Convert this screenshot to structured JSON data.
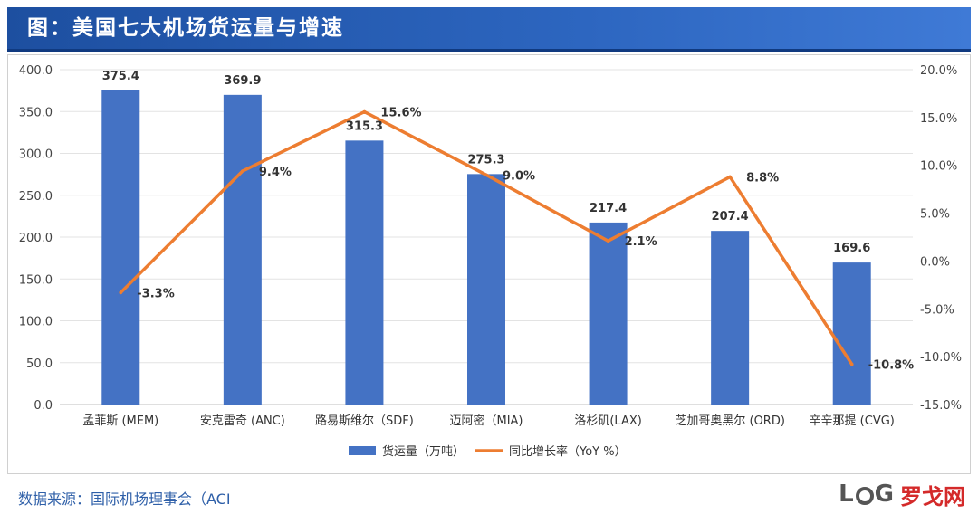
{
  "title": "图：美国七大机场货运量与增速",
  "source": "数据来源：国际机场理事会（ACI",
  "brand": {
    "log_prefix": "L",
    "log_suffix": "G",
    "cn": "罗戈网"
  },
  "colors": {
    "bar": "#4472c4",
    "line": "#ed7d31",
    "title_bg": "#2558b0"
  },
  "chart_data": {
    "type": "bar",
    "categories": [
      "孟菲斯 (MEM)",
      "安克雷奇 (ANC)",
      "路易斯维尔（SDF)",
      "迈阿密（MIA)",
      "洛杉矶(LAX)",
      "芝加哥奥黑尔 (ORD)",
      "辛辛那提 (CVG)"
    ],
    "series": [
      {
        "name": "货运量（万吨）",
        "type": "bar",
        "axis": "left",
        "values": [
          375.4,
          369.9,
          315.3,
          275.3,
          217.4,
          207.4,
          169.6
        ],
        "labels": [
          "375.4",
          "369.9",
          "315.3",
          "275.3",
          "217.4",
          "207.4",
          "169.6"
        ]
      },
      {
        "name": "同比增长率（YoY %）",
        "type": "line",
        "axis": "right",
        "values": [
          -3.3,
          9.4,
          15.6,
          9.0,
          2.1,
          8.8,
          -10.8
        ],
        "labels": [
          "-3.3%",
          "9.4%",
          "15.6%",
          "9.0%",
          "2.1%",
          "8.8%",
          "-10.8%"
        ]
      }
    ],
    "y_left": {
      "ylim": [
        0,
        400
      ],
      "ticks": [
        "0.0",
        "50.0",
        "100.0",
        "150.0",
        "200.0",
        "250.0",
        "300.0",
        "350.0",
        "400.0"
      ]
    },
    "y_right": {
      "ylim": [
        -15,
        20
      ],
      "ticks": [
        "-15.0%",
        "-10.0%",
        "-5.0%",
        "0.0%",
        "5.0%",
        "10.0%",
        "15.0%",
        "20.0%"
      ]
    },
    "grid": true,
    "legend": "bottom-center"
  }
}
